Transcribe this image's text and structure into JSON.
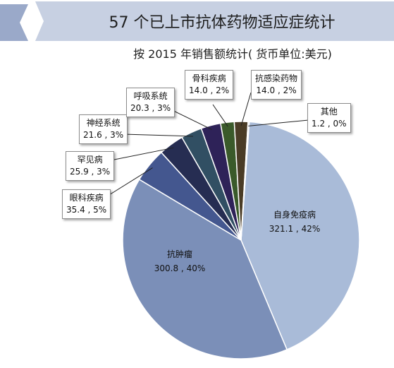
{
  "chart_data": {
    "type": "pie",
    "title": "57 个已上市抗体药物适应症统计",
    "subtitle": "按 2015 年销售额统计( 货币单位:美元)",
    "slices": [
      {
        "name": "自身免疫病",
        "value": 321.1,
        "percent": "42%",
        "value_label": "321.1 , 42%",
        "color": "#a9bbd8"
      },
      {
        "name": "抗肿瘤",
        "value": 300.8,
        "percent": "40%",
        "value_label": "300.8 , 40%",
        "color": "#7b8fb8"
      },
      {
        "name": "眼科疾病",
        "value": 35.4,
        "percent": "5%",
        "value_label": "35.4 , 5%",
        "color": "#44578f"
      },
      {
        "name": "罕见病",
        "value": 25.9,
        "percent": "3%",
        "value_label": "25.9 , 3%",
        "color": "#262d52"
      },
      {
        "name": "神经系统",
        "value": 21.6,
        "percent": "3%",
        "value_label": "21.6 , 3%",
        "color": "#314f63"
      },
      {
        "name": "呼吸系统",
        "value": 20.3,
        "percent": "3%",
        "value_label": "20.3 , 3%",
        "color": "#2e2258"
      },
      {
        "name": "骨科疾病",
        "value": 14.0,
        "percent": "2%",
        "value_label": "14.0 , 2%",
        "color": "#3a5a2a"
      },
      {
        "name": "抗感染药物",
        "value": 14.0,
        "percent": "2%",
        "value_label": "14.0 , 2%",
        "color": "#4a3c26"
      },
      {
        "name": "其他",
        "value": 1.2,
        "percent": "0%",
        "value_label": "1.2 , 0%",
        "color": "#9aa7c4"
      }
    ],
    "label_placement": "callouts-outside-with-leader-lines"
  }
}
